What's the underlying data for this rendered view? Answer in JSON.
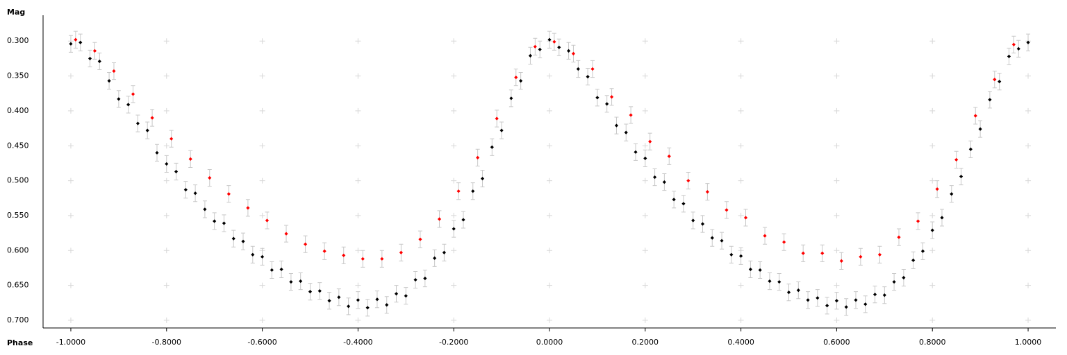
{
  "chart_data": {
    "type": "scatter",
    "ylabel": "Mag",
    "xlabel": "Phase",
    "xlim": [
      -1.058,
      1.058
    ],
    "ylim": [
      0.711,
      0.263
    ],
    "xticks": [
      {
        "value": -1,
        "label": "-1.0000"
      },
      {
        "value": -0.8,
        "label": "-0.8000"
      },
      {
        "value": -0.6,
        "label": "-0.6000"
      },
      {
        "value": -0.4,
        "label": "-0.4000"
      },
      {
        "value": -0.2,
        "label": "-0.2000"
      },
      {
        "value": 0,
        "label": "0.0000"
      },
      {
        "value": 0.2,
        "label": "0.2000"
      },
      {
        "value": 0.4,
        "label": "0.4000"
      },
      {
        "value": 0.6,
        "label": "0.6000"
      },
      {
        "value": 0.8,
        "label": "0.8000"
      },
      {
        "value": 1,
        "label": "1.0000"
      }
    ],
    "yticks": [
      {
        "value": 0.3,
        "label": "0.300"
      },
      {
        "value": 0.35,
        "label": "0.350"
      },
      {
        "value": 0.4,
        "label": "0.400"
      },
      {
        "value": 0.45,
        "label": "0.450"
      },
      {
        "value": 0.5,
        "label": "0.500"
      },
      {
        "value": 0.55,
        "label": "0.550"
      },
      {
        "value": 0.6,
        "label": "0.600"
      },
      {
        "value": 0.65,
        "label": "0.650"
      },
      {
        "value": 0.7,
        "label": "0.700"
      }
    ],
    "grid": "cross",
    "marker": "diamond",
    "error_color": "#c8c8c8",
    "series": [
      {
        "color": "#000000",
        "error": 0.012,
        "x": [
          -1,
          -0.98,
          -0.96,
          -0.94,
          -0.92,
          -0.9,
          -0.88,
          -0.86,
          -0.84,
          -0.82,
          -0.8,
          -0.78,
          -0.76,
          -0.74,
          -0.72,
          -0.7,
          -0.68,
          -0.66,
          -0.64,
          -0.62,
          -0.6,
          -0.58,
          -0.56,
          -0.54,
          -0.52,
          -0.5,
          -0.48,
          -0.46,
          -0.44,
          -0.42,
          -0.4,
          -0.38,
          -0.36,
          -0.34,
          -0.32,
          -0.3,
          -0.28,
          -0.26,
          -0.24,
          -0.22,
          -0.2,
          -0.18,
          -0.16,
          -0.14,
          -0.12,
          -0.1,
          -0.08,
          -0.06,
          -0.04,
          -0.02,
          0,
          0.02,
          0.04,
          0.06,
          0.08,
          0.1,
          0.12,
          0.14,
          0.16,
          0.18,
          0.2,
          0.22,
          0.24,
          0.26,
          0.28,
          0.3,
          0.32,
          0.34,
          0.36,
          0.38,
          0.4,
          0.42,
          0.44,
          0.46,
          0.48,
          0.5,
          0.52,
          0.54,
          0.56,
          0.58,
          0.6,
          0.62,
          0.64,
          0.66,
          0.68,
          0.7,
          0.72,
          0.74,
          0.76,
          0.78,
          0.8,
          0.82,
          0.84,
          0.86,
          0.88,
          0.9,
          0.92,
          0.94,
          0.96,
          0.98,
          1
        ],
        "values": [
          0.304,
          0.302,
          0.325,
          0.329,
          0.357,
          0.383,
          0.391,
          0.418,
          0.428,
          0.46,
          0.476,
          0.487,
          0.513,
          0.518,
          0.541,
          0.558,
          0.561,
          0.583,
          0.587,
          0.606,
          0.609,
          0.628,
          0.627,
          0.645,
          0.644,
          0.659,
          0.658,
          0.672,
          0.667,
          0.68,
          0.671,
          0.682,
          0.67,
          0.678,
          0.662,
          0.665,
          0.642,
          0.64,
          0.611,
          0.603,
          0.569,
          0.556,
          0.515,
          0.497,
          0.452,
          0.428,
          0.382,
          0.357,
          0.321,
          0.312,
          0.298,
          0.309,
          0.314,
          0.34,
          0.351,
          0.381,
          0.39,
          0.421,
          0.431,
          0.459,
          0.468,
          0.495,
          0.502,
          0.527,
          0.533,
          0.557,
          0.562,
          0.582,
          0.586,
          0.606,
          0.608,
          0.627,
          0.628,
          0.644,
          0.645,
          0.66,
          0.657,
          0.671,
          0.668,
          0.679,
          0.672,
          0.681,
          0.671,
          0.677,
          0.663,
          0.664,
          0.645,
          0.639,
          0.614,
          0.601,
          0.571,
          0.553,
          0.519,
          0.494,
          0.455,
          0.426,
          0.384,
          0.358,
          0.322,
          0.311,
          0.302
        ]
      },
      {
        "color": "#ff0000",
        "error": 0.012,
        "x": [
          -0.99,
          -0.95,
          -0.91,
          -0.87,
          -0.83,
          -0.79,
          -0.75,
          -0.71,
          -0.67,
          -0.63,
          -0.59,
          -0.55,
          -0.51,
          -0.47,
          -0.43,
          -0.39,
          -0.35,
          -0.31,
          -0.27,
          -0.23,
          -0.19,
          -0.15,
          -0.11,
          -0.07,
          -0.03,
          0.01,
          0.05,
          0.09,
          0.13,
          0.17,
          0.21,
          0.25,
          0.29,
          0.33,
          0.37,
          0.41,
          0.45,
          0.49,
          0.53,
          0.57,
          0.61,
          0.65,
          0.69,
          0.73,
          0.77,
          0.81,
          0.85,
          0.89,
          0.93,
          0.97
        ],
        "values": [
          0.298,
          0.314,
          0.343,
          0.376,
          0.41,
          0.44,
          0.469,
          0.496,
          0.519,
          0.539,
          0.557,
          0.576,
          0.591,
          0.601,
          0.607,
          0.612,
          0.612,
          0.603,
          0.584,
          0.555,
          0.515,
          0.467,
          0.411,
          0.352,
          0.308,
          0.301,
          0.318,
          0.34,
          0.38,
          0.406,
          0.444,
          0.465,
          0.5,
          0.516,
          0.542,
          0.553,
          0.579,
          0.588,
          0.604,
          0.604,
          0.615,
          0.609,
          0.606,
          0.581,
          0.558,
          0.512,
          0.47,
          0.407,
          0.355,
          0.305
        ]
      }
    ]
  }
}
